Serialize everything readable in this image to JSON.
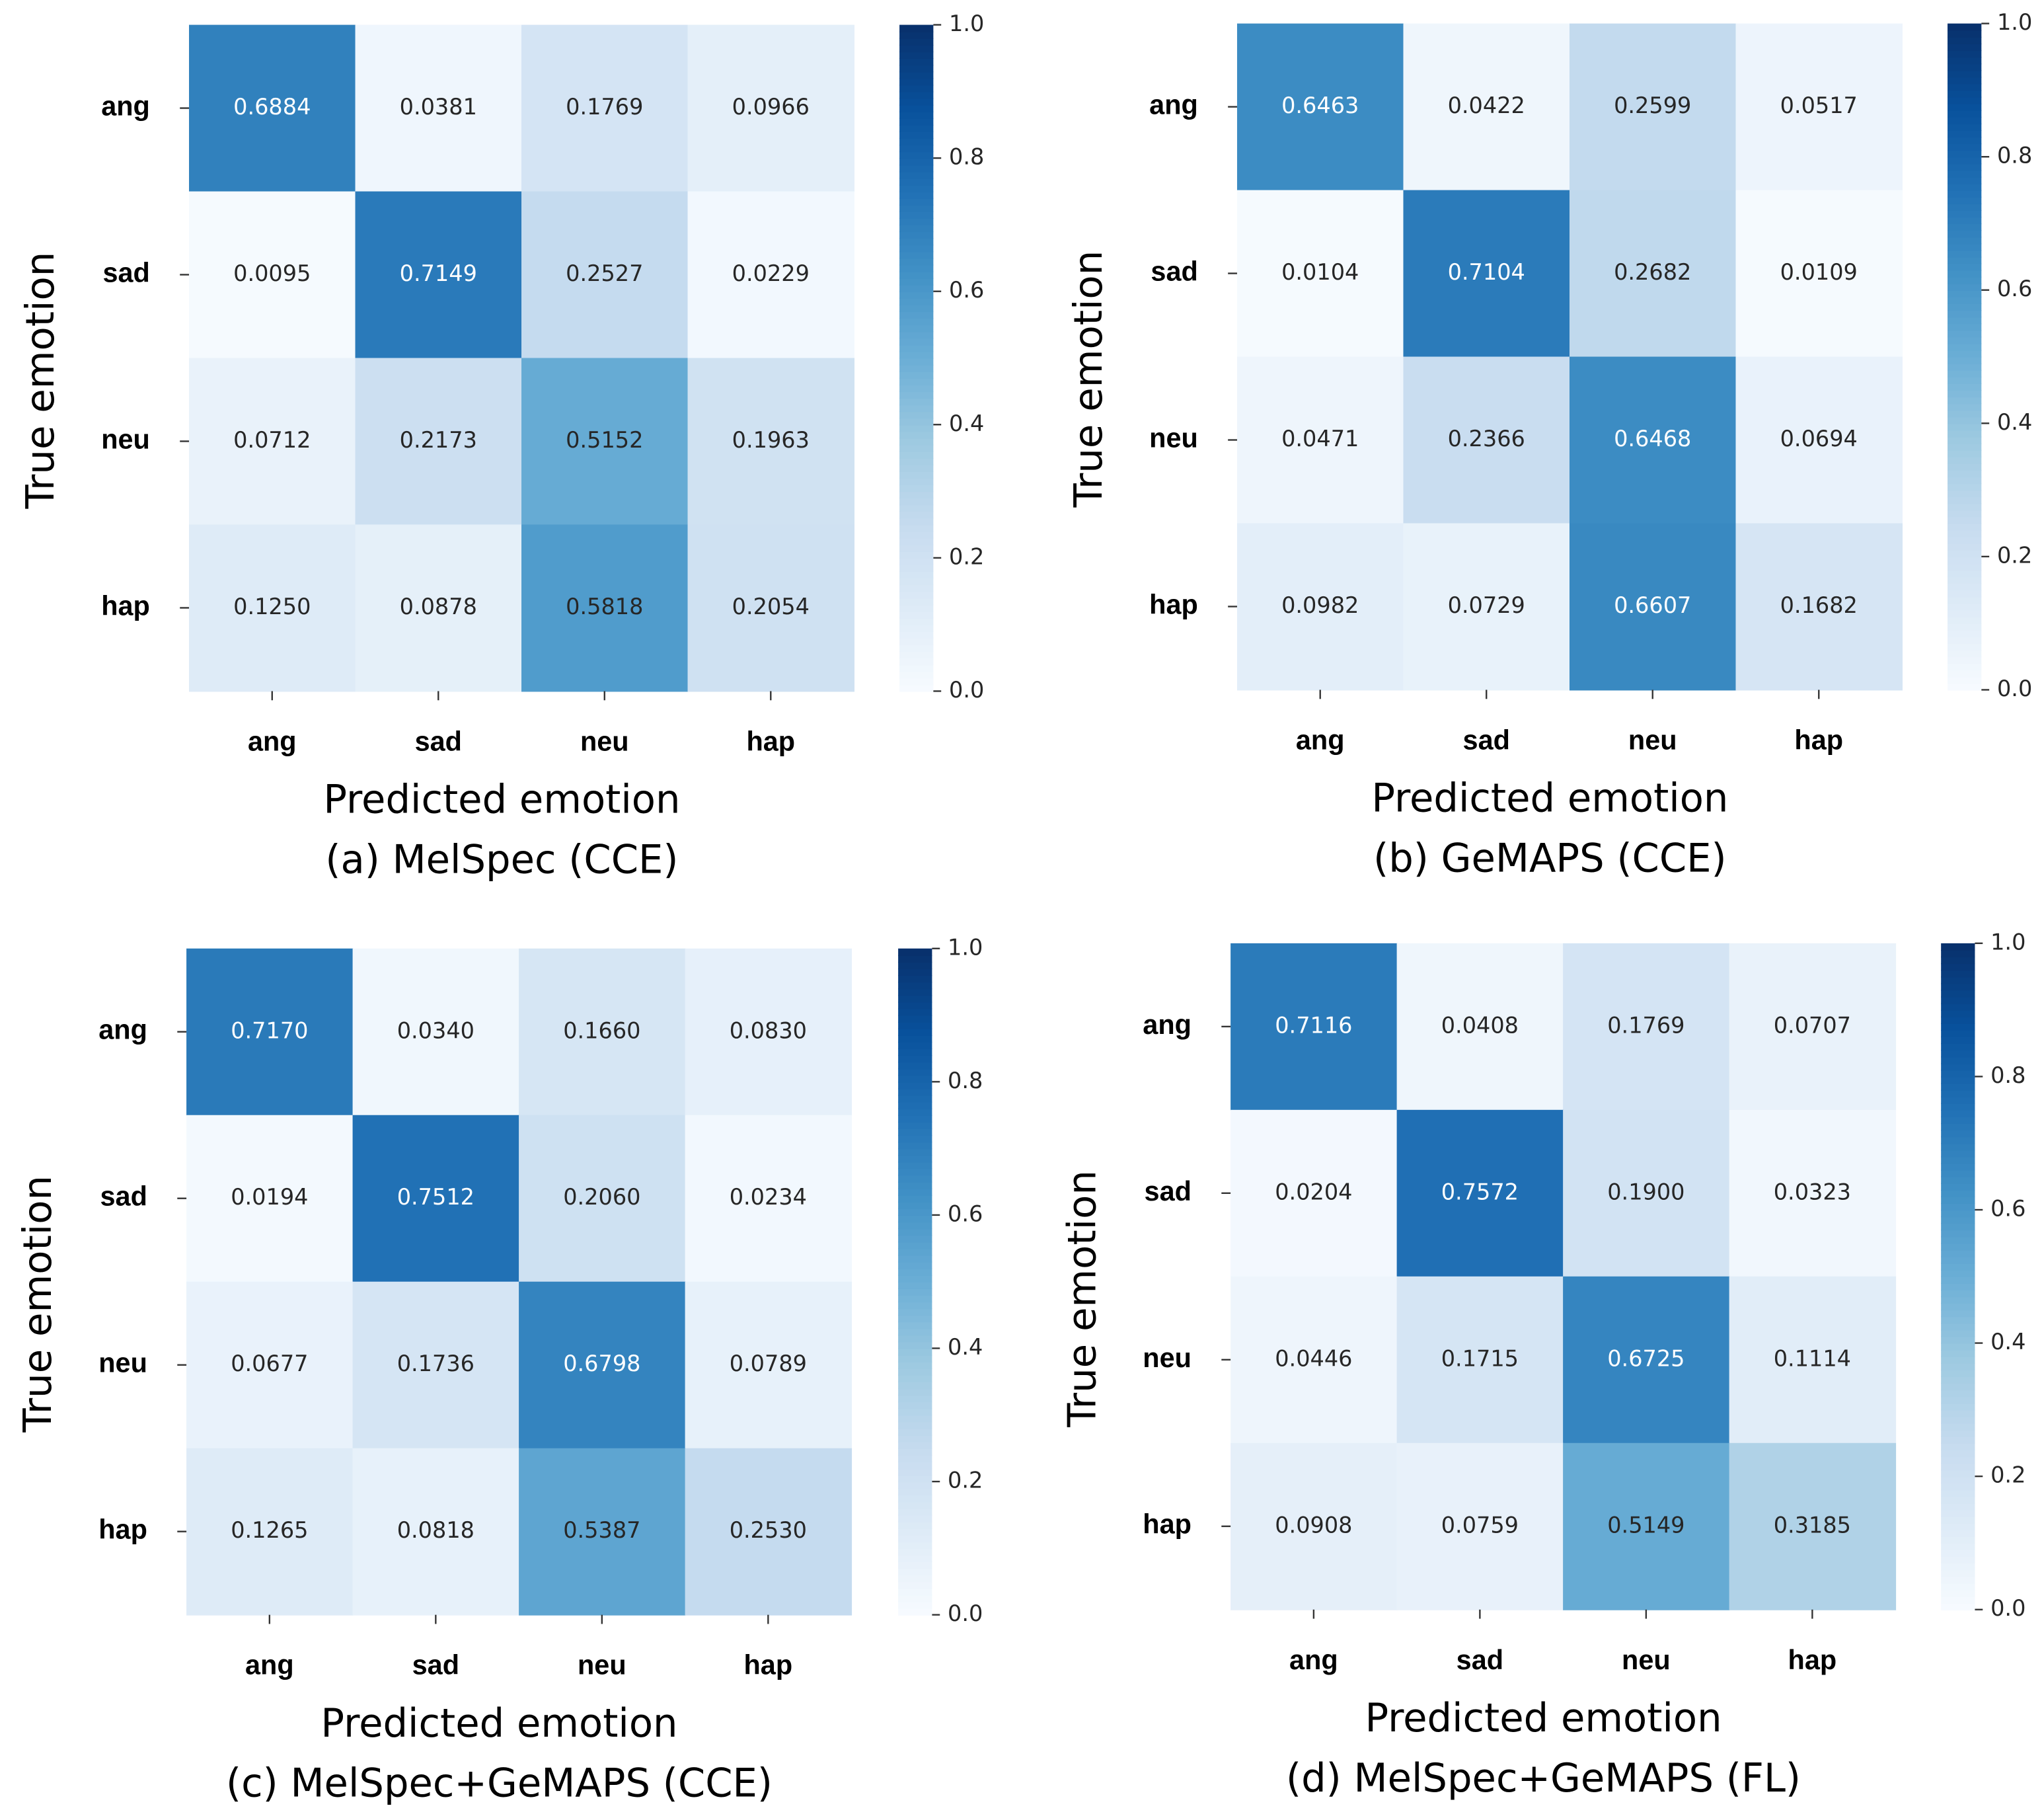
{
  "chart_data": [
    {
      "type": "heatmap",
      "title": "(a) MelSpec (CCE)",
      "xlabel": "Predicted emotion",
      "ylabel": "True emotion",
      "x": [
        "ang",
        "sad",
        "neu",
        "hap"
      ],
      "y": [
        "ang",
        "sad",
        "neu",
        "hap"
      ],
      "values": [
        [
          0.6884,
          0.0381,
          0.1769,
          0.0966
        ],
        [
          0.0095,
          0.7149,
          0.2527,
          0.0229
        ],
        [
          0.0712,
          0.2173,
          0.5152,
          0.1963
        ],
        [
          0.125,
          0.0878,
          0.5818,
          0.2054
        ]
      ],
      "value_labels": [
        [
          "0.6884",
          "0.0381",
          "0.1769",
          "0.0966"
        ],
        [
          "0.0095",
          "0.7149",
          "0.2527",
          "0.0229"
        ],
        [
          "0.0712",
          "0.2173",
          "0.5152",
          "0.1963"
        ],
        [
          "0.1250",
          "0.0878",
          "0.5818",
          "0.2054"
        ]
      ],
      "vlim": [
        0,
        1
      ],
      "colorbar_ticks": [
        {
          "value": 0,
          "label": "0.0"
        },
        0.2,
        0.4,
        0.6,
        0.8,
        {
          "value": 1,
          "label": "1.0"
        }
      ],
      "colormap": [
        "#f7fbff",
        "#deebf7",
        "#c6dbef",
        "#9ecae1",
        "#6baed6",
        "#4292c6",
        "#2171b5",
        "#08519c",
        "#08306b"
      ]
    },
    {
      "type": "heatmap",
      "title": "(b) GeMAPS (CCE)",
      "xlabel": "Predicted emotion",
      "ylabel": "True emotion",
      "x": [
        "ang",
        "sad",
        "neu",
        "hap"
      ],
      "y": [
        "ang",
        "sad",
        "neu",
        "hap"
      ],
      "values": [
        [
          0.6463,
          0.0422,
          0.2599,
          0.0517
        ],
        [
          0.0104,
          0.7104,
          0.2682,
          0.0109
        ],
        [
          0.0471,
          0.2366,
          0.6468,
          0.0694
        ],
        [
          0.0982,
          0.0729,
          0.6607,
          0.1682
        ]
      ],
      "value_labels": [
        [
          "0.6463",
          "0.0422",
          "0.2599",
          "0.0517"
        ],
        [
          "0.0104",
          "0.7104",
          "0.2682",
          "0.0109"
        ],
        [
          "0.0471",
          "0.2366",
          "0.6468",
          "0.0694"
        ],
        [
          "0.0982",
          "0.0729",
          "0.6607",
          "0.1682"
        ]
      ],
      "vlim": [
        0,
        1
      ],
      "colorbar_ticks": [
        {
          "value": 0,
          "label": "0.0"
        },
        0.2,
        0.4,
        0.6,
        0.8,
        {
          "value": 1,
          "label": "1.0"
        }
      ],
      "colormap": [
        "#f7fbff",
        "#deebf7",
        "#c6dbef",
        "#9ecae1",
        "#6baed6",
        "#4292c6",
        "#2171b5",
        "#08519c",
        "#08306b"
      ]
    },
    {
      "type": "heatmap",
      "title": "(c) MelSpec+GeMAPS (CCE)",
      "xlabel": "Predicted emotion",
      "ylabel": "True emotion",
      "x": [
        "ang",
        "sad",
        "neu",
        "hap"
      ],
      "y": [
        "ang",
        "sad",
        "neu",
        "hap"
      ],
      "values": [
        [
          0.717,
          0.034,
          0.166,
          0.083
        ],
        [
          0.0194,
          0.7512,
          0.206,
          0.0234
        ],
        [
          0.0677,
          0.1736,
          0.6798,
          0.0789
        ],
        [
          0.1265,
          0.0818,
          0.5387,
          0.253
        ]
      ],
      "value_labels": [
        [
          "0.7170",
          "0.0340",
          "0.1660",
          "0.0830"
        ],
        [
          "0.0194",
          "0.7512",
          "0.2060",
          "0.0234"
        ],
        [
          "0.0677",
          "0.1736",
          "0.6798",
          "0.0789"
        ],
        [
          "0.1265",
          "0.0818",
          "0.5387",
          "0.2530"
        ]
      ],
      "vlim": [
        0,
        1
      ],
      "colorbar_ticks": [
        {
          "value": 0,
          "label": "0.0"
        },
        0.2,
        0.4,
        0.6,
        0.8,
        {
          "value": 1,
          "label": "1.0"
        }
      ],
      "colormap": [
        "#f7fbff",
        "#deebf7",
        "#c6dbef",
        "#9ecae1",
        "#6baed6",
        "#4292c6",
        "#2171b5",
        "#08519c",
        "#08306b"
      ]
    },
    {
      "type": "heatmap",
      "title": "(d) MelSpec+GeMAPS (FL)",
      "xlabel": "Predicted emotion",
      "ylabel": "True emotion",
      "x": [
        "ang",
        "sad",
        "neu",
        "hap"
      ],
      "y": [
        "ang",
        "sad",
        "neu",
        "hap"
      ],
      "values": [
        [
          0.7116,
          0.0408,
          0.1769,
          0.0707
        ],
        [
          0.0204,
          0.7572,
          0.19,
          0.0323
        ],
        [
          0.0446,
          0.1715,
          0.6725,
          0.1114
        ],
        [
          0.0908,
          0.0759,
          0.5149,
          0.3185
        ]
      ],
      "value_labels": [
        [
          "0.7116",
          "0.0408",
          "0.1769",
          "0.0707"
        ],
        [
          "0.0204",
          "0.7572",
          "0.1900",
          "0.0323"
        ],
        [
          "0.0446",
          "0.1715",
          "0.6725",
          "0.1114"
        ],
        [
          "0.0908",
          "0.0759",
          "0.5149",
          "0.3185"
        ]
      ],
      "vlim": [
        0,
        1
      ],
      "colorbar_ticks": [
        {
          "value": 0,
          "label": "0.0"
        },
        0.2,
        0.4,
        0.6,
        0.8,
        {
          "value": 1,
          "label": "1.0"
        }
      ],
      "colormap": [
        "#f7fbff",
        "#deebf7",
        "#c6dbef",
        "#9ecae1",
        "#6baed6",
        "#4292c6",
        "#2171b5",
        "#08519c",
        "#08306b"
      ]
    }
  ]
}
